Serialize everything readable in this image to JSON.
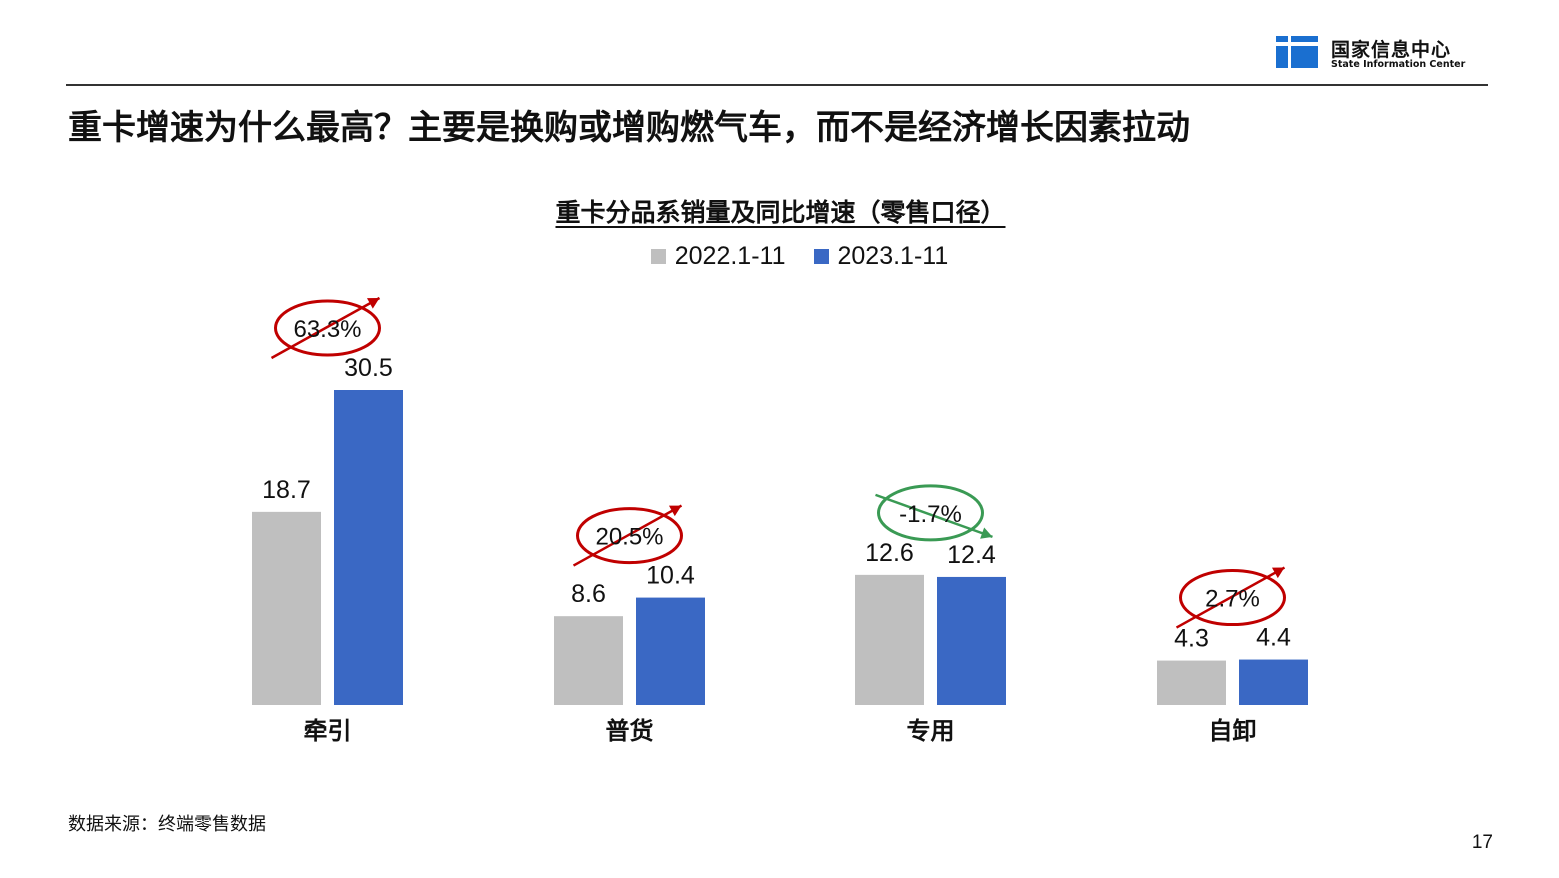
{
  "header": {
    "org_name_cn": "国家信息中心",
    "org_name_en": "State Information Center",
    "logo_icon": "sic-logo-icon",
    "brand_color": "#1a6fd0"
  },
  "slide": {
    "title": "重卡增速为什么最高？主要是换购或增购燃气车，而不是经济增长因素拉动",
    "source": "数据来源：终端零售数据",
    "page_number": "17"
  },
  "chart_data": {
    "type": "bar",
    "title": "重卡分品系销量及同比增速（零售口径）",
    "categories": [
      "牵引",
      "普货",
      "专用",
      "自卸"
    ],
    "series": [
      {
        "name": "2022.1-11",
        "color": "#bfbfbf",
        "values": [
          18.7,
          8.6,
          12.6,
          4.3
        ]
      },
      {
        "name": "2023.1-11",
        "color": "#3a68c4",
        "values": [
          30.5,
          10.4,
          12.4,
          4.4
        ]
      }
    ],
    "growth": [
      {
        "label": "63.3%",
        "direction": "up",
        "color": "#c00000"
      },
      {
        "label": "20.5%",
        "direction": "up",
        "color": "#c00000"
      },
      {
        "label": "-1.7%",
        "direction": "down",
        "color": "#3a9a54"
      },
      {
        "label": "2.7%",
        "direction": "up",
        "color": "#c00000"
      }
    ],
    "ylim": [
      0,
      30.5
    ],
    "grid": false,
    "legend_position": "top-center"
  }
}
